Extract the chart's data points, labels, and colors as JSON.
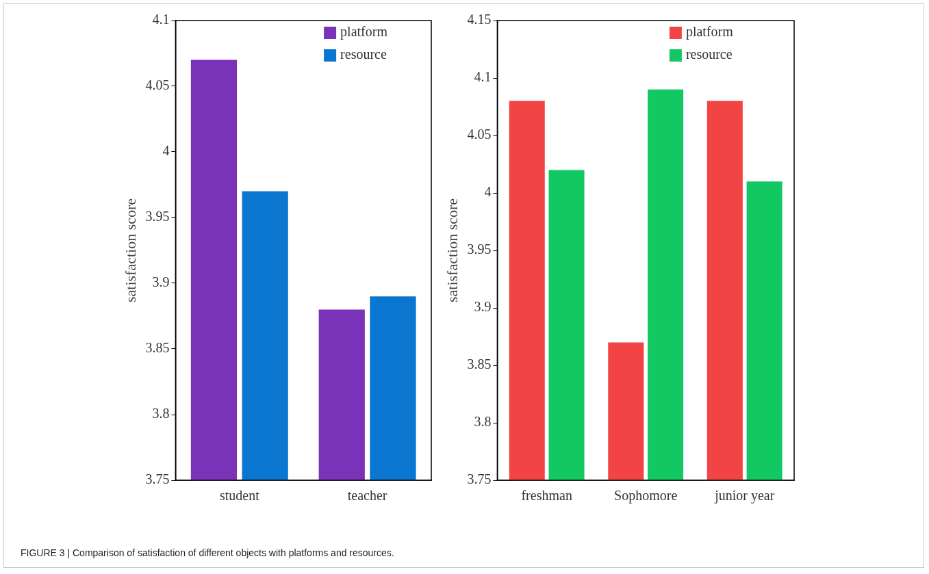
{
  "chart_data": [
    {
      "type": "bar",
      "ylabel": "satisfaction score",
      "categories": [
        "student",
        "teacher"
      ],
      "series": [
        {
          "name": "platform",
          "color": "#7a33b8",
          "values": [
            4.07,
            3.88
          ]
        },
        {
          "name": "resource",
          "color": "#0a76d0",
          "values": [
            3.97,
            3.89
          ]
        }
      ],
      "ylim": [
        3.75,
        4.1
      ],
      "yticks": [
        3.75,
        3.8,
        3.85,
        3.9,
        3.95,
        4,
        4.05,
        4.1
      ],
      "grid": false,
      "legend": "top right",
      "annotations": [
        "FIGURE 3 | Comparison of satisfaction of different objects with platforms and resources."
      ]
    },
    {
      "type": "bar",
      "ylabel": "satisfaction score",
      "categories": [
        "freshman",
        "Sophomore",
        "junior year"
      ],
      "series": [
        {
          "name": "platform",
          "color": "#f24444",
          "values": [
            4.08,
            3.87,
            4.08
          ]
        },
        {
          "name": "resource",
          "color": "#12c862",
          "values": [
            4.02,
            4.09,
            4.01
          ]
        }
      ],
      "ylim": [
        3.75,
        4.15
      ],
      "yticks": [
        3.75,
        3.8,
        3.85,
        3.9,
        3.95,
        4,
        4.05,
        4.1,
        4.15
      ],
      "grid": false,
      "legend": "top right"
    }
  ]
}
